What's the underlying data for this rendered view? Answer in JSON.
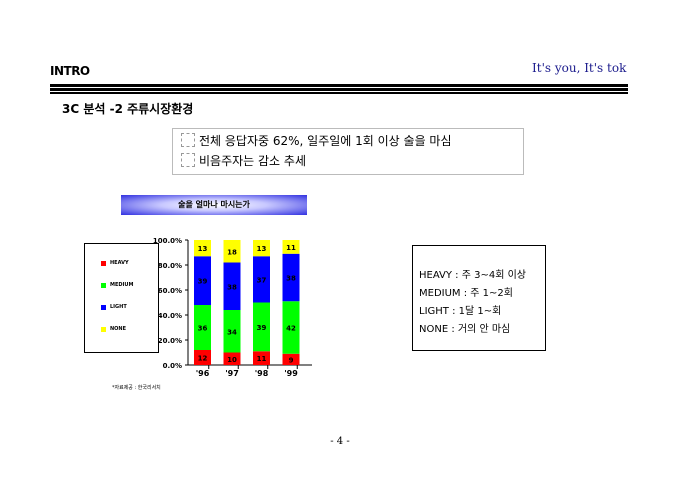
{
  "header": {
    "section": "INTRO",
    "tagline": "It's you, It's tok"
  },
  "title": "3C 분석 -2  주류시장환경",
  "summary": [
    "전체 응답자중 62%, 일주일에 1회 이상 술을 마심",
    "비음주자는 감소 추세"
  ],
  "chart_data": {
    "type": "bar",
    "stacked": true,
    "title": "술을 얼마나 마시는가",
    "categories": [
      "'96",
      "'97",
      "'98",
      "'99"
    ],
    "ylim": [
      0,
      100
    ],
    "yticks": [
      "0.0%",
      "20.0%",
      "40.0%",
      "60.0%",
      "80.0%",
      "100.0%"
    ],
    "legend_placement": "left",
    "series": [
      {
        "name": "HEAVY",
        "color": "#ff0000",
        "values": [
          12,
          10,
          11,
          9
        ]
      },
      {
        "name": "MEDIUM",
        "color": "#00ff00",
        "values": [
          36,
          34,
          39,
          42
        ]
      },
      {
        "name": "LIGHT",
        "color": "#0000ff",
        "values": [
          39,
          38,
          37,
          38
        ]
      },
      {
        "name": "NONE",
        "color": "#ffff00",
        "values": [
          13,
          18,
          13,
          11
        ]
      }
    ],
    "source": "*자료제공 : 한국리서치"
  },
  "definitions": [
    "HEAVY  : 주 3~4회 이상",
    "MEDIUM : 주 1~2회",
    "LIGHT  : 1달 1~회",
    "NONE   : 거의 안 마심"
  ],
  "page_number": "- 4 -"
}
